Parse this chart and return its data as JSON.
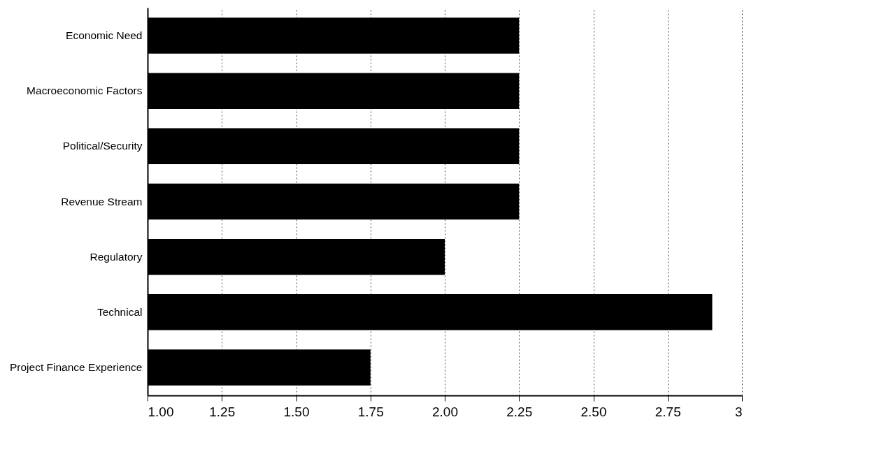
{
  "chart_data": {
    "type": "bar",
    "orientation": "horizontal",
    "categories": [
      "Economic Need",
      "Macroeconomic Factors",
      "Political/Security",
      "Revenue Stream",
      "Regulatory",
      "Technical",
      "Project Finance Experience"
    ],
    "values": [
      2.25,
      2.25,
      2.25,
      2.25,
      2.0,
      2.9,
      1.75
    ],
    "color": "#000000",
    "xlim": [
      1,
      3
    ],
    "xticks": [
      {
        "value": 1,
        "label": "1.00"
      },
      {
        "value": 1.25,
        "label": "1.25"
      },
      {
        "value": 1.5,
        "label": "1.50"
      },
      {
        "value": 1.75,
        "label": "1.75"
      },
      {
        "value": 2,
        "label": "2.00"
      },
      {
        "value": 2.25,
        "label": "2.25"
      },
      {
        "value": 2.5,
        "label": "2.50"
      },
      {
        "value": 2.75,
        "label": "2.75"
      },
      3
    ],
    "grid": "x"
  }
}
